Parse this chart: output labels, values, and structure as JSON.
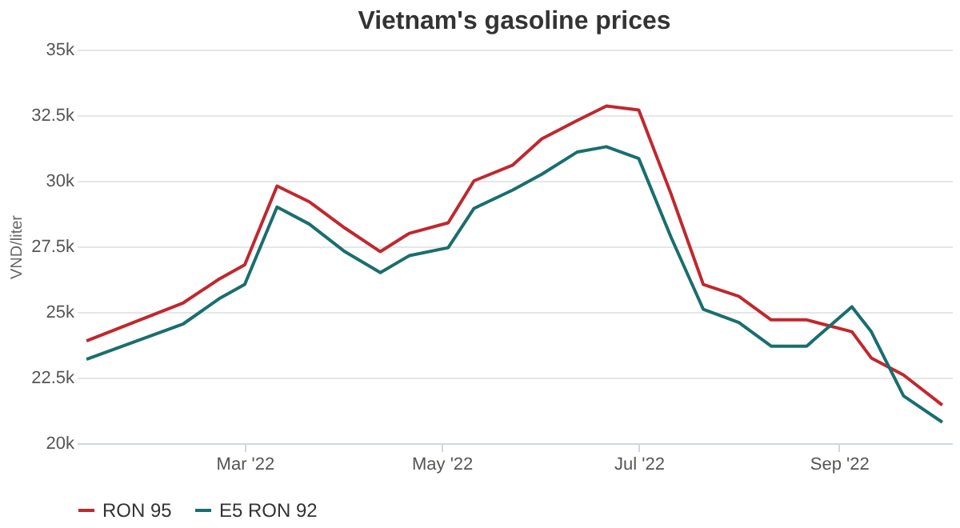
{
  "chart_data": {
    "type": "line",
    "title": "Vietnam's gasoline prices",
    "ylabel": "VND/liter",
    "x": [
      "2022-01-11",
      "2022-02-10",
      "2022-02-21",
      "2022-03-01",
      "2022-03-11",
      "2022-03-21",
      "2022-04-01",
      "2022-04-12",
      "2022-04-21",
      "2022-05-03",
      "2022-05-11",
      "2022-05-23",
      "2022-06-01",
      "2022-06-12",
      "2022-06-21",
      "2022-07-01",
      "2022-07-11",
      "2022-07-21",
      "2022-08-01",
      "2022-08-11",
      "2022-08-22",
      "2022-09-05",
      "2022-09-11",
      "2022-09-21",
      "2022-10-03"
    ],
    "series": [
      {
        "name": "RON 95",
        "color": "#c0282d",
        "values": [
          23900,
          25350,
          26250,
          26800,
          29800,
          29200,
          28200,
          27300,
          28000,
          28400,
          30000,
          30600,
          31600,
          32300,
          32850,
          32700,
          29500,
          26050,
          25600,
          24700,
          24700,
          24250,
          23250,
          22600,
          21450
        ]
      },
      {
        "name": "E5 RON 92",
        "color": "#1a6e6e",
        "values": [
          23200,
          24550,
          25500,
          26050,
          29000,
          28350,
          27300,
          26500,
          27150,
          27450,
          28950,
          29650,
          30250,
          31100,
          31300,
          30850,
          27850,
          25100,
          24600,
          23700,
          23700,
          25200,
          24250,
          21800,
          20800
        ]
      }
    ],
    "xlim": [
      "2022-01-08",
      "2022-10-06"
    ],
    "xticks": [
      {
        "value": "2022-03-01",
        "label": "Mar '22"
      },
      {
        "value": "2022-05-01",
        "label": "May '22"
      },
      {
        "value": "2022-07-01",
        "label": "Jul '22"
      },
      {
        "value": "2022-09-01",
        "label": "Sep '22"
      }
    ],
    "ylim": [
      20000,
      35000
    ],
    "yticks": [
      {
        "value": 20000,
        "label": "20k"
      },
      {
        "value": 22500,
        "label": "22.5k"
      },
      {
        "value": 25000,
        "label": "25k"
      },
      {
        "value": 27500,
        "label": "27.5k"
      },
      {
        "value": 30000,
        "label": "30k"
      },
      {
        "value": 32500,
        "label": "32.5k"
      },
      {
        "value": 35000,
        "label": "35k"
      }
    ],
    "grid": "y",
    "legend": "bottom",
    "marker": "none",
    "line_style": "solid"
  }
}
